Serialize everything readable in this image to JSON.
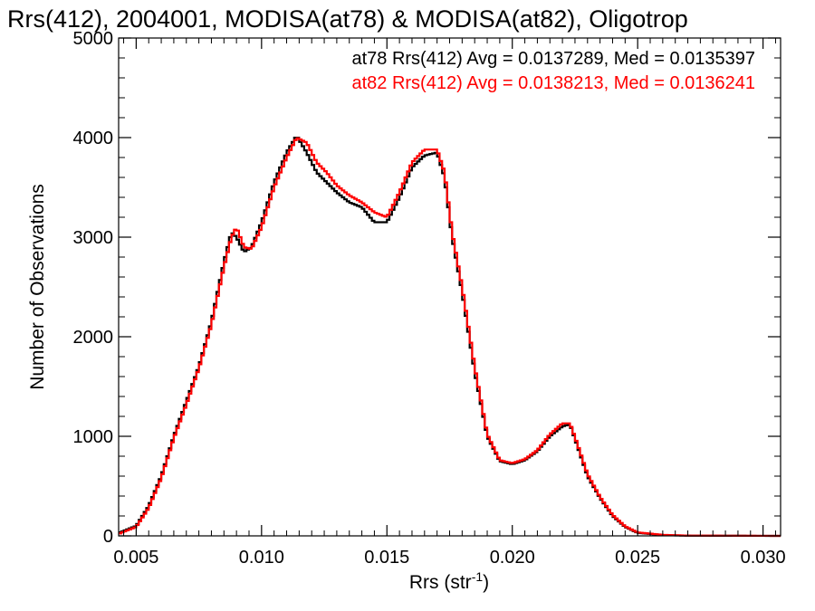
{
  "chart_data": {
    "type": "line",
    "title": "Rrs(412), 2004001, MODISA(at78) & MODISA(at82), Oligotrop",
    "xlabel": "Rrs (str",
    "xlabel_sup": "-1",
    "xlabel_close": ")",
    "ylabel": "Number of Observations",
    "xlim": [
      0.0043,
      0.0307
    ],
    "ylim": [
      0,
      5000
    ],
    "x_ticks": [
      0.005,
      0.01,
      0.015,
      0.02,
      0.025,
      0.03
    ],
    "x_tick_labels": [
      "0.005",
      "0.010",
      "0.015",
      "0.020",
      "0.025",
      "0.030"
    ],
    "y_ticks": [
      0,
      1000,
      2000,
      3000,
      4000,
      5000
    ],
    "y_tick_labels": [
      "0",
      "1000",
      "2000",
      "3000",
      "4000",
      "5000"
    ],
    "grid": false,
    "legend_position": "top-right",
    "series": [
      {
        "name": "at78",
        "color": "#000000",
        "stats_label": "at78 Rrs(412) Avg = 0.0137289, Med = 0.0135397",
        "x": [
          0.0043,
          0.005,
          0.0055,
          0.006,
          0.0065,
          0.007,
          0.0075,
          0.008,
          0.0085,
          0.0088,
          0.009,
          0.0093,
          0.0096,
          0.01,
          0.0105,
          0.011,
          0.0114,
          0.0118,
          0.0122,
          0.0126,
          0.013,
          0.0135,
          0.014,
          0.0145,
          0.015,
          0.0155,
          0.016,
          0.0165,
          0.017,
          0.0173,
          0.0176,
          0.018,
          0.0185,
          0.019,
          0.0195,
          0.02,
          0.0205,
          0.021,
          0.0215,
          0.022,
          0.0223,
          0.0226,
          0.023,
          0.0235,
          0.024,
          0.0245,
          0.025,
          0.026,
          0.027,
          0.0307
        ],
        "y": [
          30,
          100,
          300,
          600,
          1000,
          1350,
          1700,
          2150,
          2750,
          3050,
          3000,
          2850,
          2900,
          3150,
          3550,
          3850,
          4020,
          3850,
          3650,
          3550,
          3450,
          3350,
          3300,
          3150,
          3150,
          3400,
          3700,
          3820,
          3850,
          3600,
          3000,
          2450,
          1650,
          1000,
          750,
          720,
          760,
          850,
          1000,
          1100,
          1120,
          900,
          600,
          380,
          200,
          90,
          30,
          8,
          2,
          0
        ]
      },
      {
        "name": "at82",
        "color": "#ff0000",
        "stats_label": "at82 Rrs(412) Avg = 0.0138213, Med = 0.0136241",
        "x": [
          0.0043,
          0.005,
          0.0055,
          0.006,
          0.0065,
          0.007,
          0.0075,
          0.008,
          0.0085,
          0.0088,
          0.009,
          0.0093,
          0.0096,
          0.01,
          0.0105,
          0.011,
          0.0114,
          0.0118,
          0.0122,
          0.0126,
          0.013,
          0.0135,
          0.014,
          0.0145,
          0.015,
          0.0155,
          0.016,
          0.0165,
          0.017,
          0.0173,
          0.0176,
          0.018,
          0.0185,
          0.019,
          0.0195,
          0.02,
          0.0205,
          0.021,
          0.0215,
          0.022,
          0.0223,
          0.0226,
          0.023,
          0.0235,
          0.024,
          0.0245,
          0.025,
          0.026,
          0.027,
          0.0307
        ],
        "y": [
          20,
          90,
          280,
          580,
          980,
          1320,
          1680,
          2120,
          2700,
          3000,
          3100,
          2900,
          2880,
          3100,
          3500,
          3800,
          4000,
          3950,
          3750,
          3650,
          3520,
          3420,
          3350,
          3250,
          3200,
          3450,
          3750,
          3880,
          3880,
          3650,
          3050,
          2500,
          1700,
          1020,
          760,
          730,
          770,
          860,
          1020,
          1130,
          1130,
          920,
          620,
          390,
          210,
          95,
          35,
          10,
          3,
          0
        ]
      }
    ]
  }
}
